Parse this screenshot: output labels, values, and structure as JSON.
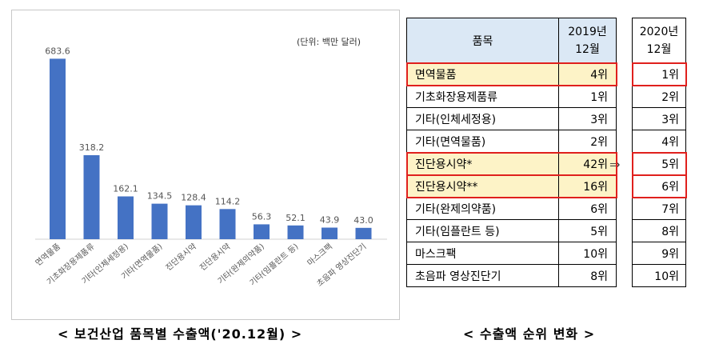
{
  "left_caption": "< 보건산업 품목별 수출액('20.12월) >",
  "right_caption": "< 수출액 순위 변화 >",
  "unit_label": "(단위: 백만 달러)",
  "arrow_symbol": "⇒",
  "chart_data": {
    "type": "bar",
    "categories": [
      "면역물품",
      "기초화장용제품류",
      "기타(인체세정용)",
      "기타(면역물품)",
      "진단용시약",
      "진단용시약",
      "기타(완제의약품)",
      "기타(임플란트 등)",
      "마스크팩",
      "초음파 영상진단기"
    ],
    "values": [
      683.6,
      318.2,
      162.1,
      134.5,
      128.4,
      114.2,
      56.3,
      52.1,
      43.9,
      43.0
    ],
    "value_labels": [
      "683.6",
      "318.2",
      "162.1",
      "134.5",
      "128.4",
      "114.2",
      "56.3",
      "52.1",
      "43.9",
      "43.0"
    ],
    "ylim": [
      0,
      700
    ],
    "bar_color": "#4472c4",
    "grid": false,
    "legend": "none"
  },
  "table": {
    "header_item": "품목",
    "header_2019": [
      "2019년",
      "12월"
    ],
    "header_2020": [
      "2020년",
      "12월"
    ],
    "rows": [
      {
        "item": "면역물품",
        "rank2019": "4위",
        "rank2020": "1위",
        "highlight": true
      },
      {
        "item": "기초화장용제품류",
        "rank2019": "1위",
        "rank2020": "2위",
        "highlight": false
      },
      {
        "item": "기타(인체세정용)",
        "rank2019": "3위",
        "rank2020": "3위",
        "highlight": false
      },
      {
        "item": "기타(면역물품)",
        "rank2019": "2위",
        "rank2020": "4위",
        "highlight": false
      },
      {
        "item": "진단용시약*",
        "rank2019": "42위",
        "rank2020": "5위",
        "highlight": true
      },
      {
        "item": "진단용시약**",
        "rank2019": "16위",
        "rank2020": "6위",
        "highlight": true
      },
      {
        "item": "기타(완제의약품)",
        "rank2019": "6위",
        "rank2020": "7위",
        "highlight": false
      },
      {
        "item": "기타(임플란트 등)",
        "rank2019": "5위",
        "rank2020": "8위",
        "highlight": false
      },
      {
        "item": "마스크팩",
        "rank2019": "10위",
        "rank2020": "9위",
        "highlight": false
      },
      {
        "item": "초음파 영상진단기",
        "rank2019": "8위",
        "rank2020": "10위",
        "highlight": false
      }
    ],
    "highlight_color": "#e0201d"
  }
}
